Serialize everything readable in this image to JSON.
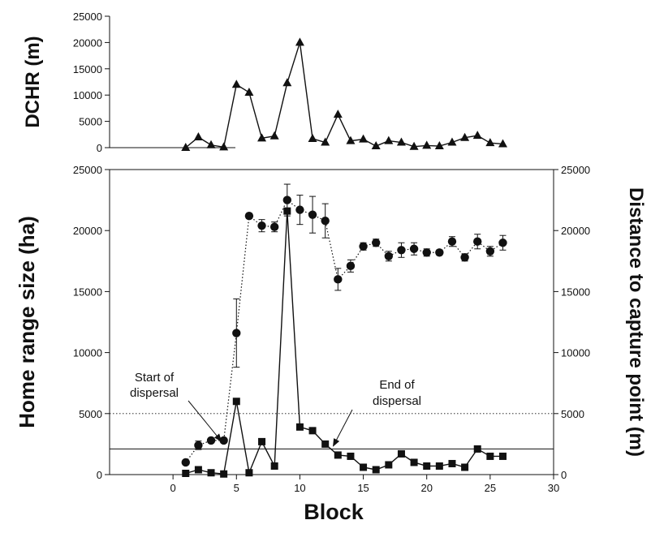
{
  "chart_data": [
    {
      "type": "line",
      "ylabel": "DCHR (m)",
      "xlim": [
        -5,
        30
      ],
      "ylim": [
        0,
        25000
      ],
      "yticks": [
        0,
        5000,
        10000,
        15000,
        20000,
        25000
      ],
      "grid": false,
      "series": [
        {
          "marker": "triangle",
          "line_style": "solid",
          "x": [
            1,
            2,
            3,
            4,
            5,
            6,
            7,
            8,
            9,
            10,
            11,
            12,
            13,
            14,
            15,
            16,
            17,
            18,
            19,
            20,
            21,
            22,
            23,
            24,
            25,
            26
          ],
          "values": [
            0,
            2000,
            500,
            100,
            12000,
            10500,
            1800,
            2200,
            12300,
            20000,
            1700,
            1000,
            6300,
            1300,
            1600,
            300,
            1300,
            1000,
            200,
            400,
            300,
            1000,
            1900,
            2300,
            900,
            700
          ]
        }
      ]
    },
    {
      "type": "line",
      "xlabel": "Block",
      "ylabel": "Home range size (ha)",
      "ylabel_right": "Distance to capture point (m)",
      "xlim": [
        -5,
        30
      ],
      "xticks": [
        0,
        5,
        10,
        15,
        20,
        25,
        30
      ],
      "ylim": [
        0,
        25000
      ],
      "yticks": [
        0,
        5000,
        10000,
        15000,
        20000,
        25000
      ],
      "y2lim": [
        0,
        25000
      ],
      "y2ticks": [
        0,
        5000,
        10000,
        15000,
        20000,
        25000
      ],
      "grid": false,
      "reference_lines": [
        {
          "y": 2100,
          "style": "solid"
        },
        {
          "y": 5000,
          "style": "dotted"
        }
      ],
      "series": [
        {
          "marker": "circle",
          "line_style": "dotted",
          "axis": "right",
          "x": [
            1,
            2,
            3,
            4,
            5,
            6,
            7,
            8,
            9,
            10,
            11,
            12,
            13,
            14,
            15,
            16,
            17,
            18,
            19,
            20,
            21,
            22,
            23,
            24,
            25,
            26
          ],
          "values": [
            1000,
            2400,
            2800,
            2800,
            11600,
            21200,
            20400,
            20300,
            22500,
            21700,
            21300,
            20800,
            16000,
            17100,
            18700,
            19000,
            17900,
            18400,
            18500,
            18200,
            18200,
            19100,
            17800,
            19100,
            18300,
            19000
          ],
          "error": [
            0,
            350,
            0,
            0,
            2800,
            200,
            500,
            400,
            1300,
            1200,
            1500,
            1400,
            900,
            500,
            300,
            300,
            400,
            600,
            500,
            300,
            200,
            400,
            300,
            600,
            400,
            600
          ]
        },
        {
          "marker": "square",
          "line_style": "solid",
          "axis": "left",
          "x": [
            1,
            2,
            3,
            4,
            5,
            6,
            7,
            8,
            9,
            10,
            11,
            12,
            13,
            14,
            15,
            16,
            17,
            18,
            19,
            20,
            21,
            22,
            23,
            24,
            25,
            26
          ],
          "values": [
            100,
            400,
            150,
            50,
            6000,
            150,
            2700,
            700,
            21600,
            3900,
            3600,
            2500,
            1600,
            1500,
            600,
            400,
            800,
            1700,
            1000,
            700,
            700,
            900,
            600,
            2100,
            1500,
            1500
          ]
        }
      ],
      "annotations": [
        {
          "lines": [
            "Start of",
            "dispersal"
          ],
          "arrow_to": [
            4,
            2800
          ]
        },
        {
          "lines": [
            "End of",
            "dispersal"
          ],
          "arrow_to": [
            12.5,
            2200
          ]
        }
      ]
    }
  ]
}
